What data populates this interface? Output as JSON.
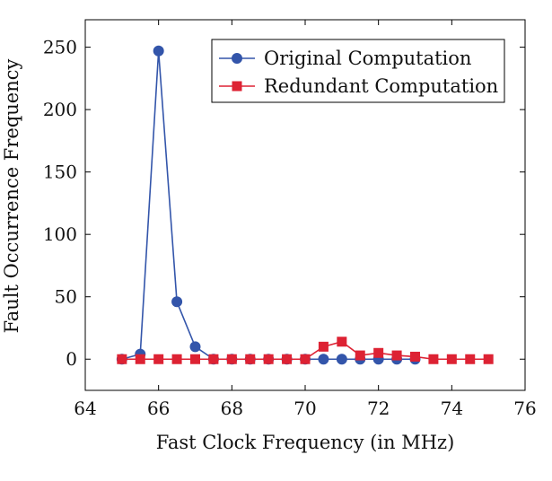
{
  "chart_data": {
    "type": "line",
    "xlabel": "Fast Clock Frequency (in MHz)",
    "ylabel": "Fault Occurrence Frequency",
    "xlim": [
      64,
      76
    ],
    "ylim": [
      -25,
      272
    ],
    "xticks": [
      64,
      66,
      68,
      70,
      72,
      74,
      76
    ],
    "yticks": [
      0,
      50,
      100,
      150,
      200,
      250
    ],
    "grid": false,
    "legend_position": "top-right",
    "series": [
      {
        "name": "Original Computation",
        "color": "#3355aa",
        "marker": "circle",
        "x": [
          65,
          65.5,
          66,
          66.5,
          67,
          67.5,
          68,
          68.5,
          69,
          69.5,
          70,
          70.5,
          71,
          71.5,
          72,
          72.5,
          73
        ],
        "y": [
          0,
          4,
          247,
          46,
          10,
          0,
          0,
          0,
          0,
          0,
          0,
          0,
          0,
          0,
          0,
          0,
          0
        ]
      },
      {
        "name": "Redundant Computation",
        "color": "#dd2233",
        "marker": "square",
        "x": [
          65,
          65.5,
          66,
          66.5,
          67,
          67.5,
          68,
          68.5,
          69,
          69.5,
          70,
          70.5,
          71,
          71.5,
          72,
          72.5,
          73,
          73.5,
          74,
          74.5,
          75
        ],
        "y": [
          0,
          0,
          0,
          0,
          0,
          0,
          0,
          0,
          0,
          0,
          0,
          10,
          14,
          3,
          5,
          3,
          2,
          0,
          0,
          0,
          0
        ]
      }
    ]
  }
}
